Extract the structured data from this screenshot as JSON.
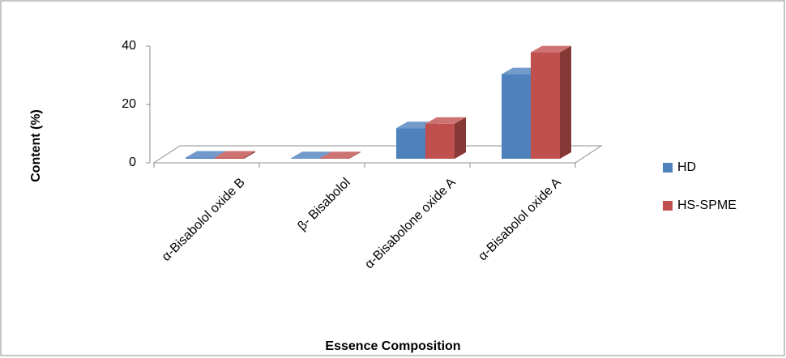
{
  "chart_data": {
    "type": "bar3d",
    "x_label": "Essence Composition",
    "y_label": "Content (%)",
    "categories": [
      "α-Bisabolol oxide B",
      "β- Bisabolol",
      "α-Bisabolone oxide A",
      "α-Bisabolol oxide A"
    ],
    "series": [
      {
        "name": "HD",
        "color": "#4f81bd",
        "values": [
          0.4,
          0.2,
          10.5,
          29
        ]
      },
      {
        "name": "HS-SPME",
        "color": "#c0504d",
        "values": [
          0.4,
          0.2,
          12,
          36.5
        ]
      }
    ],
    "ylim": [
      0,
      40
    ],
    "yticks": [
      0,
      20,
      40
    ],
    "grid": false,
    "legend": "right"
  }
}
